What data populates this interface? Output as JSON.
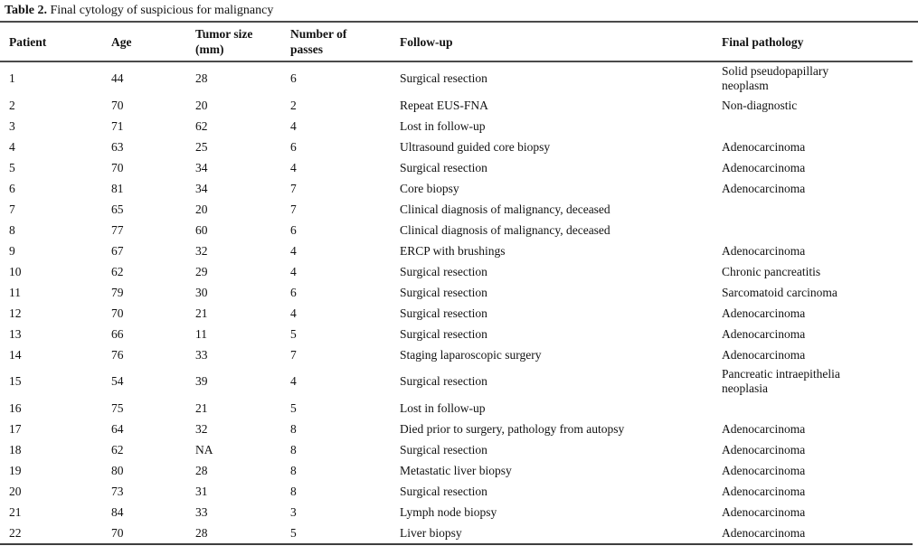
{
  "table": {
    "title_prefix": "Table 2.",
    "title_rest": " Final cytology of suspicious for malignancy",
    "columns": [
      "Patient",
      "Age",
      "Tumor size\n(mm)",
      "Number of\npasses",
      "Follow-up",
      "Final pathology"
    ],
    "column_keys": [
      "patient",
      "age",
      "tumor-size",
      "passes",
      "follow-up",
      "pathology"
    ],
    "rows": [
      [
        "1",
        "44",
        "28",
        "6",
        "Surgical resection",
        "Solid pseudopapillary\nneoplasm"
      ],
      [
        "2",
        "70",
        "20",
        "2",
        "Repeat EUS-FNA",
        "Non-diagnostic"
      ],
      [
        "3",
        "71",
        "62",
        "4",
        "Lost in follow-up",
        ""
      ],
      [
        "4",
        "63",
        "25",
        "6",
        "Ultrasound guided core biopsy",
        "Adenocarcinoma"
      ],
      [
        "5",
        "70",
        "34",
        "4",
        "Surgical resection",
        "Adenocarcinoma"
      ],
      [
        "6",
        "81",
        "34",
        "7",
        "Core biopsy",
        "Adenocarcinoma"
      ],
      [
        "7",
        "65",
        "20",
        "7",
        "Clinical diagnosis of malignancy, deceased",
        ""
      ],
      [
        "8",
        "77",
        "60",
        "6",
        "Clinical diagnosis of malignancy, deceased",
        ""
      ],
      [
        "9",
        "67",
        "32",
        "4",
        "ERCP with brushings",
        "Adenocarcinoma"
      ],
      [
        "10",
        "62",
        "29",
        "4",
        "Surgical resection",
        "Chronic pancreatitis"
      ],
      [
        "11",
        "79",
        "30",
        "6",
        "Surgical resection",
        "Sarcomatoid carcinoma"
      ],
      [
        "12",
        "70",
        "21",
        "4",
        "Surgical resection",
        "Adenocarcinoma"
      ],
      [
        "13",
        "66",
        "11",
        "5",
        "Surgical resection",
        "Adenocarcinoma"
      ],
      [
        "14",
        "76",
        "33",
        "7",
        "Staging laparoscopic surgery",
        "Adenocarcinoma"
      ],
      [
        "15",
        "54",
        "39",
        "4",
        "Surgical resection",
        "Pancreatic intraepithelia\nneoplasia"
      ],
      [
        "16",
        "75",
        "21",
        "5",
        "Lost in follow-up",
        ""
      ],
      [
        "17",
        "64",
        "32",
        "8",
        "Died prior to surgery, pathology from autopsy",
        "Adenocarcinoma"
      ],
      [
        "18",
        "62",
        "NA",
        "8",
        "Surgical resection",
        "Adenocarcinoma"
      ],
      [
        "19",
        "80",
        "28",
        "8",
        "Metastatic liver biopsy",
        "Adenocarcinoma"
      ],
      [
        "20",
        "73",
        "31",
        "8",
        "Surgical resection",
        "Adenocarcinoma"
      ],
      [
        "21",
        "84",
        "33",
        "3",
        "Lymph node biopsy",
        "Adenocarcinoma"
      ],
      [
        "22",
        "70",
        "28",
        "5",
        "Liver biopsy",
        "Adenocarcinoma"
      ]
    ],
    "colors": {
      "text": "#111111",
      "rule": "#4a4a4a",
      "background": "#ffffff"
    }
  }
}
